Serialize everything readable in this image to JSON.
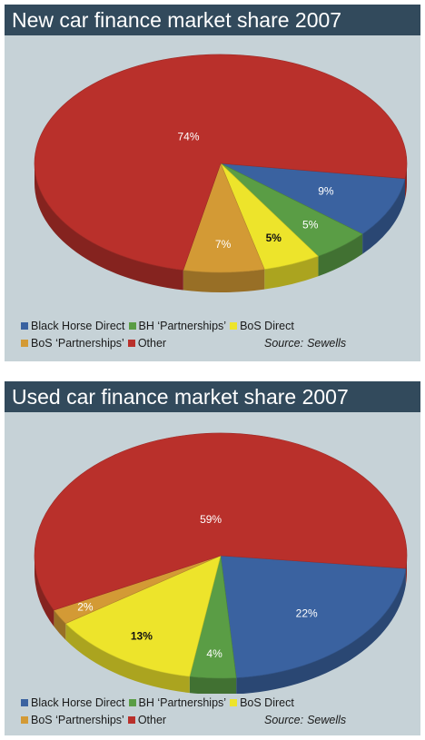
{
  "charts": [
    {
      "title": "New car finance market share 2007",
      "legend_rows": [
        [
          0,
          1,
          2
        ],
        [
          3,
          4
        ]
      ],
      "source": {
        "label": "Source:",
        "name": "Sewells"
      }
    },
    {
      "title": "Used car finance market share 2007",
      "legend_rows": [
        [
          0,
          1,
          2
        ],
        [
          3,
          4
        ]
      ],
      "source": {
        "label": "Source:",
        "name": "Sewells"
      }
    }
  ],
  "chart_data": [
    {
      "type": "pie",
      "title": "New car finance market share 2007",
      "series": [
        {
          "name": "Black Horse Direct",
          "value": 9,
          "label": "9%",
          "color": "#3a62a0"
        },
        {
          "name": "BH ‘Partnerships’",
          "value": 5,
          "label": "5%",
          "color": "#5a9d45"
        },
        {
          "name": "BoS Direct",
          "value": 5,
          "label": "5%",
          "color": "#ede42b"
        },
        {
          "name": "BoS ‘Partnerships’",
          "value": 7,
          "label": "7%",
          "color": "#d39a35"
        },
        {
          "name": "Other",
          "value": 74,
          "label": "74%",
          "color": "#b9302b"
        }
      ],
      "legend": "bottom",
      "source": "Source: Sewells"
    },
    {
      "type": "pie",
      "title": "Used car finance market share 2007",
      "series": [
        {
          "name": "Black Horse Direct",
          "value": 22,
          "label": "22%",
          "color": "#3a62a0"
        },
        {
          "name": "BH ‘Partnerships’",
          "value": 4,
          "label": "4%",
          "color": "#5a9d45"
        },
        {
          "name": "BoS Direct",
          "value": 13,
          "label": "13%",
          "color": "#ede42b"
        },
        {
          "name": "BoS ‘Partnerships’",
          "value": 2,
          "label": "2%",
          "color": "#d39a35"
        },
        {
          "name": "Other",
          "value": 59,
          "label": "59%",
          "color": "#b9302b"
        }
      ],
      "legend": "bottom",
      "source": "Source: Sewells"
    }
  ]
}
